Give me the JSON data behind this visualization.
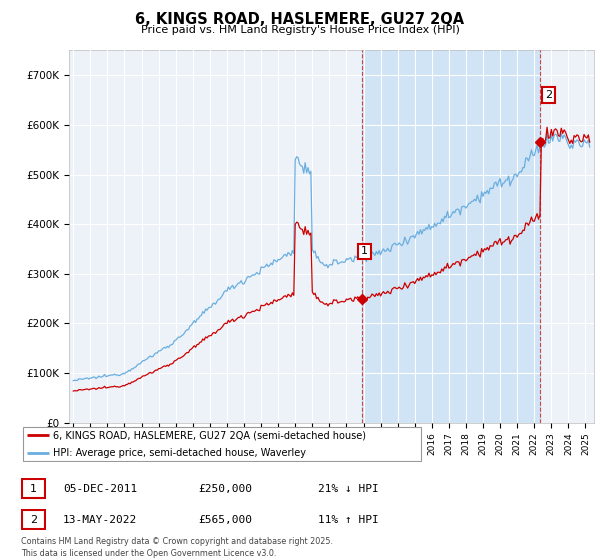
{
  "title": "6, KINGS ROAD, HASLEMERE, GU27 2QA",
  "subtitle": "Price paid vs. HM Land Registry's House Price Index (HPI)",
  "ylim": [
    0,
    750000
  ],
  "yticks": [
    0,
    100000,
    200000,
    300000,
    400000,
    500000,
    600000,
    700000
  ],
  "ytick_labels": [
    "£0",
    "£100K",
    "£200K",
    "£300K",
    "£400K",
    "£500K",
    "£600K",
    "£700K"
  ],
  "hpi_color": "#6aaee0",
  "price_color": "#cc0000",
  "legend_label1": "6, KINGS ROAD, HASLEMERE, GU27 2QA (semi-detached house)",
  "legend_label2": "HPI: Average price, semi-detached house, Waverley",
  "table_row1": [
    "1",
    "05-DEC-2011",
    "£250,000",
    "21% ↓ HPI"
  ],
  "table_row2": [
    "2",
    "13-MAY-2022",
    "£565,000",
    "11% ↑ HPI"
  ],
  "footer": "Contains HM Land Registry data © Crown copyright and database right 2025.\nThis data is licensed under the Open Government Licence v3.0.",
  "background_color": "#ffffff",
  "plot_bg_color": "#edf2f9",
  "shade_color": "#d0e4f5",
  "grid_color": "#ffffff",
  "vline_color": "#cc0000",
  "sale1_year": 2011,
  "sale1_month": 12,
  "sale1_price": 250000,
  "sale2_year": 2022,
  "sale2_month": 5,
  "sale2_price": 565000,
  "start_year": 1995,
  "end_year": 2025,
  "end_month": 4
}
